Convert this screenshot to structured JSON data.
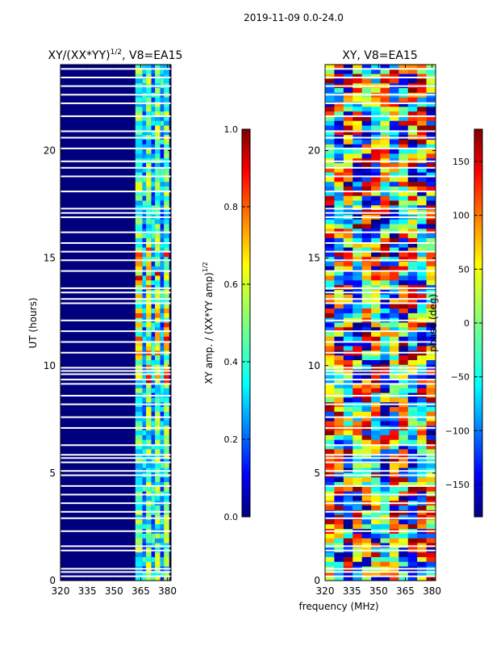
{
  "figure_title": "2019-11-09 0.0-24.0",
  "chart_data": [
    {
      "type": "heatmap",
      "title_main": "XY/(XX*YY)",
      "title_sup": "1/2",
      "title_suffix": ", V8=EA15",
      "ylabel": "UT (hours)",
      "x_ticks": [
        "320",
        "335",
        "350",
        "365",
        "380"
      ],
      "x_tick_values": [
        320,
        335,
        350,
        365,
        380
      ],
      "y_ticks": [
        "0",
        "5",
        "10",
        "15",
        "20"
      ],
      "y_tick_values": [
        0,
        5,
        10,
        15,
        20
      ],
      "xlim": [
        320,
        382
      ],
      "ylim": [
        0,
        24
      ],
      "colorbar": {
        "label_main": "XY amp. / (XX*YY amp)",
        "label_sup": "1/2",
        "ticks": [
          "0.0",
          "0.2",
          "0.4",
          "0.6",
          "0.8",
          "1.0"
        ],
        "tick_values": [
          0.0,
          0.2,
          0.4,
          0.6,
          0.8,
          1.0
        ],
        "range": [
          0,
          1
        ],
        "colormap": "jet"
      }
    },
    {
      "type": "heatmap",
      "title": "XY, V8=EA15",
      "x_ticks": [
        "320",
        "335",
        "350",
        "365",
        "380"
      ],
      "x_tick_values": [
        320,
        335,
        350,
        365,
        380
      ],
      "y_ticks": [
        "0",
        "5",
        "10",
        "15",
        "20"
      ],
      "y_tick_values": [
        0,
        5,
        10,
        15,
        20
      ],
      "xlim": [
        320,
        382
      ],
      "ylim": [
        0,
        24
      ],
      "colorbar": {
        "label": "phase (deg)",
        "ticks": [
          "−150",
          "−100",
          "−50",
          "0",
          "50",
          "100",
          "150"
        ],
        "tick_values": [
          -150,
          -100,
          -50,
          0,
          50,
          100,
          150
        ],
        "range": [
          -180,
          180
        ],
        "colormap": "jet"
      }
    }
  ],
  "shared_xlabel": "frequency (MHz)",
  "colors": {
    "jet": [
      "#00007f",
      "#0000ff",
      "#007fff",
      "#00ffff",
      "#7fff7f",
      "#ffff00",
      "#ff7f00",
      "#ff0000",
      "#7f0000"
    ]
  }
}
